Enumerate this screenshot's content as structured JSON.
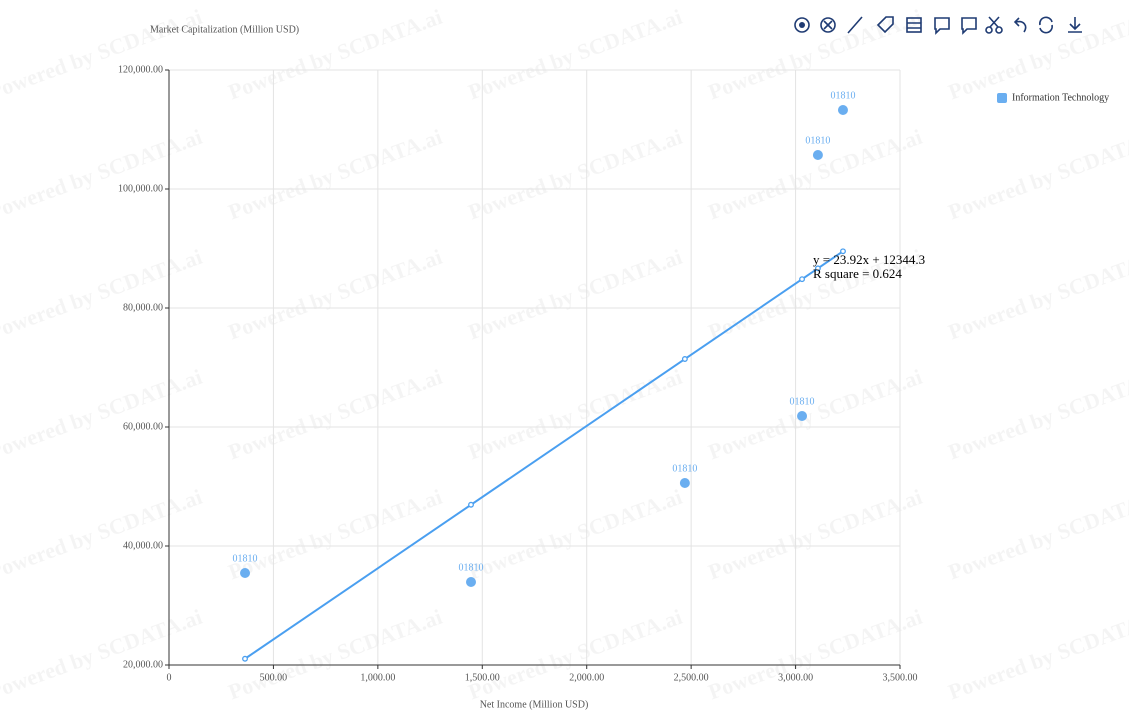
{
  "chart_data": {
    "type": "scatter",
    "y_axis_title": "Market Capitalization (Million USD)",
    "x_axis_title": "Net Income (Million USD)",
    "watermark": "Powered by SCDATA.ai",
    "legend_position": "top-right",
    "grid": true,
    "xlim": [
      0,
      3500
    ],
    "ylim": [
      20000,
      120000
    ],
    "xticks": [
      0,
      {
        "value": 500,
        "label": "500.00"
      },
      {
        "value": 1000,
        "label": "1,000.00"
      },
      {
        "value": 1500,
        "label": "1,500.00"
      },
      {
        "value": 2000,
        "label": "2,000.00"
      },
      {
        "value": 2500,
        "label": "2,500.00"
      },
      {
        "value": 3000,
        "label": "3,000.00"
      },
      {
        "value": 3500,
        "label": "3,500.00"
      }
    ],
    "yticks": [
      {
        "value": 20000,
        "label": "20,000.00"
      },
      {
        "value": 40000,
        "label": "40,000.00"
      },
      {
        "value": 60000,
        "label": "60,000.00"
      },
      {
        "value": 80000,
        "label": "80,000.00"
      },
      {
        "value": 100000,
        "label": "100,000.00"
      },
      {
        "value": 120000,
        "label": "120,000.00"
      }
    ],
    "series": [
      {
        "name": "Information Technology",
        "color": "#6aaef0",
        "x": [
          364,
          1446,
          2470,
          3031,
          3107,
          3227
        ],
        "values": [
          35460,
          33950,
          50590,
          61850,
          105710,
          113280
        ],
        "point_labels": [
          "01810",
          "01810",
          "01810",
          "01810",
          "01810",
          "01810"
        ]
      }
    ],
    "trendline": {
      "color": "#4a9ff0",
      "slope": 23.92,
      "intercept": 12344.3,
      "equation": "y = 23.92x + 12344.3",
      "r_square": "R square = 0.624"
    }
  }
}
